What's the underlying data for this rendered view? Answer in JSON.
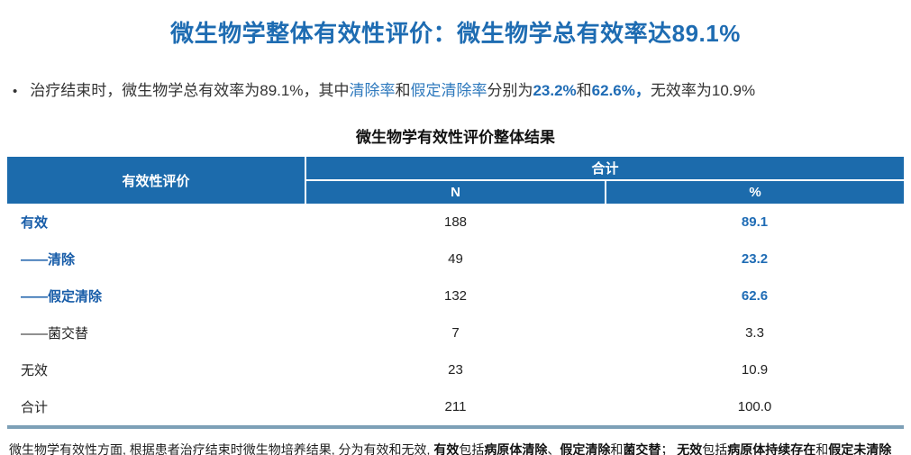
{
  "slide": {
    "title": "微生物学整体有效性评价：微生物学总有效率达89.1%",
    "colors": {
      "accent_blue": "#1E6CB2",
      "term_blue": "#2E79BD",
      "emphasis_blue": "#1F6CB5",
      "table_header_bg": "#1C6BAC",
      "row_label_blue": "#175CA8",
      "table_bottom_border": "#7DA0B7"
    }
  },
  "bullet": {
    "marker": "•",
    "segments": [
      {
        "text": "治疗结束时，微生物学总有效率为89.1%，其中",
        "style": "normal"
      },
      {
        "text": "清除率",
        "style": "term"
      },
      {
        "text": "和",
        "style": "normal"
      },
      {
        "text": "假定清除率",
        "style": "term"
      },
      {
        "text": "分别为",
        "style": "normal"
      },
      {
        "text": "23.2%",
        "style": "em"
      },
      {
        "text": "和",
        "style": "normal"
      },
      {
        "text": "62.6%，",
        "style": "em"
      },
      {
        "text": "无效率为10.9%",
        "style": "normal"
      }
    ]
  },
  "table": {
    "caption": "微生物学有效性评价整体结果",
    "header": {
      "col_label": "有效性评价",
      "group_label": "合计",
      "col_n": "N",
      "col_pct": "%"
    },
    "rows": [
      {
        "label": "有效",
        "n": "188",
        "pct": "89.1",
        "highlight": true
      },
      {
        "label": "——清除",
        "n": "49",
        "pct": "23.2",
        "highlight": true
      },
      {
        "label": "——假定清除",
        "n": "132",
        "pct": "62.6",
        "highlight": true
      },
      {
        "label": "——菌交替",
        "n": "7",
        "pct": "3.3",
        "highlight": false
      },
      {
        "label": "无效",
        "n": "23",
        "pct": "10.9",
        "highlight": false
      },
      {
        "label": "合计",
        "n": "211",
        "pct": "100.0",
        "highlight": false
      }
    ]
  },
  "footnote": {
    "segments": [
      {
        "text": "微生物学有效性方面, 根据患者治疗结束时微生物培养结果, 分为有效和无效, ",
        "style": "normal"
      },
      {
        "text": "有效",
        "style": "bold"
      },
      {
        "text": "包括",
        "style": "normal"
      },
      {
        "text": "病原体清除",
        "style": "bold"
      },
      {
        "text": "、",
        "style": "normal"
      },
      {
        "text": "假定清除",
        "style": "bold"
      },
      {
        "text": "和",
        "style": "normal"
      },
      {
        "text": "菌交替",
        "style": "bold"
      },
      {
        "text": "；  ",
        "style": "normal"
      },
      {
        "text": "无效",
        "style": "bold"
      },
      {
        "text": "包括",
        "style": "normal"
      },
      {
        "text": "病原体持续存在",
        "style": "bold"
      },
      {
        "text": "和",
        "style": "normal"
      },
      {
        "text": "假定未清除",
        "style": "bold"
      }
    ]
  }
}
